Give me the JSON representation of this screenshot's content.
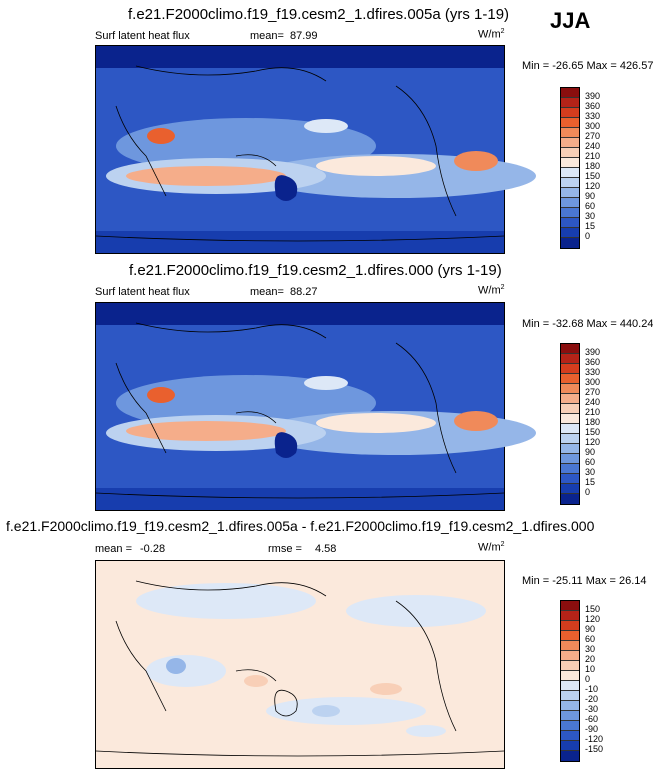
{
  "season": "JJA",
  "panels": [
    {
      "title": "f.e21.F2000climo.f19_f19.cesm2_1.dfires.005a (yrs 1-19)",
      "variable": "Surf latent heat flux",
      "stat1_label": "mean=",
      "stat1_value": "87.99",
      "stat2_label": "",
      "stat2_value": "",
      "units": "W/m",
      "units_exp": "2",
      "minmax": "Min = -26.65 Max = 426.57",
      "colorbar_levels": [
        "390",
        "360",
        "330",
        "300",
        "270",
        "240",
        "210",
        "180",
        "150",
        "120",
        "90",
        "60",
        "30",
        "15",
        "0"
      ],
      "colorbar_colors": [
        "#8a0e0e",
        "#b42318",
        "#d43d1e",
        "#e9602e",
        "#f08a5a",
        "#f5ad8a",
        "#f8cfb7",
        "#fbe9dc",
        "#dde8f7",
        "#bcd2f0",
        "#95b6e8",
        "#6e97de",
        "#4a77d3",
        "#2d57c4",
        "#173dae",
        "#0a238d"
      ]
    },
    {
      "title": "f.e21.F2000climo.f19_f19.cesm2_1.dfires.000 (yrs 1-19)",
      "variable": "Surf latent heat flux",
      "stat1_label": "mean=",
      "stat1_value": "88.27",
      "stat2_label": "",
      "stat2_value": "",
      "units": "W/m",
      "units_exp": "2",
      "minmax": "Min = -32.68 Max = 440.24",
      "colorbar_levels": [
        "390",
        "360",
        "330",
        "300",
        "270",
        "240",
        "210",
        "180",
        "150",
        "120",
        "90",
        "60",
        "30",
        "15",
        "0"
      ],
      "colorbar_colors": [
        "#8a0e0e",
        "#b42318",
        "#d43d1e",
        "#e9602e",
        "#f08a5a",
        "#f5ad8a",
        "#f8cfb7",
        "#fbe9dc",
        "#dde8f7",
        "#bcd2f0",
        "#95b6e8",
        "#6e97de",
        "#4a77d3",
        "#2d57c4",
        "#173dae",
        "#0a238d"
      ]
    },
    {
      "title": "f.e21.F2000climo.f19_f19.cesm2_1.dfires.005a - f.e21.F2000climo.f19_f19.cesm2_1.dfires.000",
      "variable": "",
      "stat1_label": "mean =",
      "stat1_value": "-0.28",
      "stat2_label": "rmse =",
      "stat2_value": "4.58",
      "units": "W/m",
      "units_exp": "2",
      "minmax": "Min = -25.11 Max = 26.14",
      "colorbar_levels": [
        "150",
        "120",
        "90",
        "60",
        "30",
        "20",
        "10",
        "0",
        "-10",
        "-20",
        "-30",
        "-60",
        "-90",
        "-120",
        "-150"
      ],
      "colorbar_colors": [
        "#8a0e0e",
        "#b42318",
        "#d43d1e",
        "#e9602e",
        "#f08a5a",
        "#f5ad8a",
        "#f8cfb7",
        "#fbe9dc",
        "#dde8f7",
        "#bcd2f0",
        "#95b6e8",
        "#6e97de",
        "#4a77d3",
        "#2d57c4",
        "#173dae",
        "#0a238d"
      ]
    }
  ]
}
